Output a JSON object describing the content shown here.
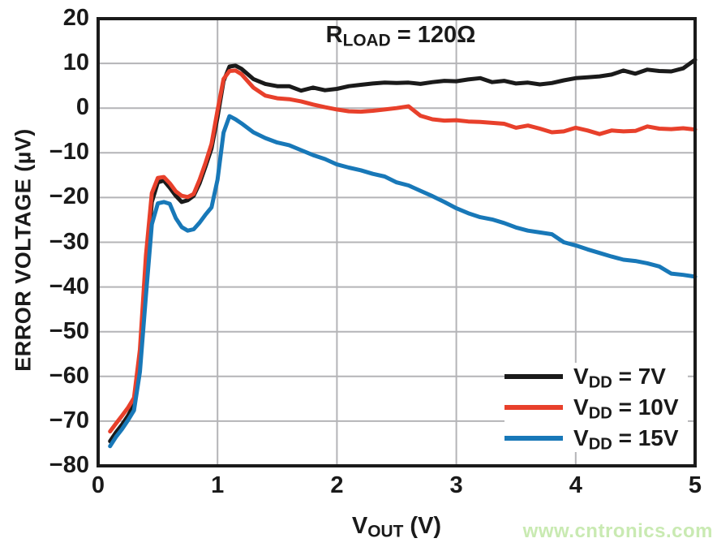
{
  "watermark": {
    "text": "www.cntronics.com",
    "color": "#c9eab2"
  },
  "chart_data": {
    "type": "line",
    "annotation": {
      "pre": "R",
      "sub": "LOAD",
      "post": " = 120Ω"
    },
    "xlabel": {
      "pre": "V",
      "sub": "OUT",
      "post": " (V)"
    },
    "ylabel": "ERROR VOLTAGE (µV)",
    "xlim": [
      0,
      5
    ],
    "ylim": [
      -80,
      20
    ],
    "x_ticks": [
      0,
      1,
      2,
      3,
      4,
      5
    ],
    "y_ticks": [
      20,
      10,
      0,
      -10,
      -20,
      -30,
      -40,
      -50,
      -60,
      -70,
      -80
    ],
    "grid": true,
    "grid_color": "#b4b4b7",
    "axis_color": "#1a1a1a",
    "legend_position": "lower right",
    "series": [
      {
        "id": "vdd-7v",
        "label_pre": "V",
        "label_sub": "DD",
        "label_post": " = 7V",
        "color": "#1a1a1a",
        "x": [
          0.1,
          0.15,
          0.2,
          0.25,
          0.3,
          0.35,
          0.4,
          0.45,
          0.5,
          0.55,
          0.6,
          0.65,
          0.7,
          0.75,
          0.8,
          0.85,
          0.9,
          0.95,
          1.0,
          1.05,
          1.1,
          1.15,
          1.2,
          1.3,
          1.4,
          1.5,
          1.6,
          1.7,
          1.8,
          1.9,
          2.0,
          2.1,
          2.2,
          2.3,
          2.4,
          2.5,
          2.6,
          2.7,
          2.8,
          2.9,
          3.0,
          3.1,
          3.2,
          3.3,
          3.4,
          3.5,
          3.6,
          3.7,
          3.8,
          3.9,
          4.0,
          4.1,
          4.2,
          4.3,
          4.4,
          4.5,
          4.6,
          4.7,
          4.8,
          4.9,
          5.0
        ],
        "y": [
          -74.5,
          -72.5,
          -70.8,
          -68.8,
          -66.3,
          -57,
          -37,
          -21,
          -16.6,
          -16.2,
          -17.8,
          -19.6,
          -21.0,
          -20.6,
          -19.6,
          -16.8,
          -13.0,
          -9.0,
          -2.0,
          6.0,
          9.3,
          9.5,
          8.8,
          6.5,
          5.4,
          4.9,
          4.9,
          3.9,
          4.6,
          4.0,
          4.3,
          4.9,
          5.2,
          5.5,
          5.7,
          5.6,
          5.7,
          5.4,
          5.8,
          6.1,
          6.0,
          6.4,
          6.7,
          5.8,
          6.1,
          5.5,
          5.7,
          5.3,
          5.6,
          6.2,
          6.7,
          6.9,
          7.1,
          7.5,
          8.4,
          7.7,
          8.6,
          8.3,
          8.2,
          8.9,
          10.8
        ]
      },
      {
        "id": "vdd-10v",
        "label_pre": "V",
        "label_sub": "DD",
        "label_post": " = 10V",
        "color": "#e8402b",
        "x": [
          0.1,
          0.15,
          0.2,
          0.25,
          0.3,
          0.35,
          0.4,
          0.45,
          0.5,
          0.55,
          0.6,
          0.65,
          0.7,
          0.75,
          0.8,
          0.85,
          0.9,
          0.95,
          1.0,
          1.05,
          1.1,
          1.15,
          1.2,
          1.3,
          1.4,
          1.5,
          1.6,
          1.7,
          1.8,
          1.9,
          2.0,
          2.1,
          2.2,
          2.3,
          2.4,
          2.5,
          2.6,
          2.7,
          2.8,
          2.9,
          3.0,
          3.1,
          3.2,
          3.3,
          3.4,
          3.5,
          3.6,
          3.7,
          3.8,
          3.9,
          4.0,
          4.1,
          4.2,
          4.3,
          4.4,
          4.5,
          4.6,
          4.7,
          4.8,
          4.9,
          5.0
        ],
        "y": [
          -72.3,
          -70.5,
          -68.8,
          -67.0,
          -64.8,
          -54,
          -33,
          -19,
          -15.6,
          -15.4,
          -16.8,
          -18.6,
          -19.6,
          -19.9,
          -19.2,
          -16.0,
          -12.2,
          -8.0,
          -0.5,
          6.5,
          8.3,
          8.4,
          7.6,
          4.6,
          2.8,
          2.2,
          2.0,
          1.5,
          0.8,
          0.2,
          -0.3,
          -0.7,
          -0.8,
          -0.6,
          -0.3,
          0.0,
          0.4,
          -1.7,
          -2.5,
          -2.8,
          -2.7,
          -3.0,
          -3.1,
          -3.3,
          -3.5,
          -4.4,
          -3.9,
          -4.6,
          -5.4,
          -5.2,
          -4.4,
          -5.0,
          -5.8,
          -5.0,
          -5.2,
          -5.1,
          -4.1,
          -4.6,
          -4.7,
          -4.5,
          -4.8
        ]
      },
      {
        "id": "vdd-15v",
        "label_pre": "V",
        "label_sub": "DD",
        "label_post": " = 15V",
        "color": "#1878b8",
        "x": [
          0.1,
          0.15,
          0.2,
          0.25,
          0.3,
          0.35,
          0.4,
          0.45,
          0.5,
          0.55,
          0.6,
          0.65,
          0.7,
          0.75,
          0.8,
          0.85,
          0.9,
          0.95,
          1.0,
          1.05,
          1.1,
          1.15,
          1.2,
          1.3,
          1.4,
          1.5,
          1.6,
          1.7,
          1.8,
          1.9,
          2.0,
          2.1,
          2.2,
          2.3,
          2.4,
          2.5,
          2.6,
          2.7,
          2.8,
          2.9,
          3.0,
          3.1,
          3.2,
          3.3,
          3.4,
          3.5,
          3.6,
          3.7,
          3.8,
          3.9,
          4.0,
          4.1,
          4.2,
          4.3,
          4.4,
          4.5,
          4.6,
          4.7,
          4.8,
          4.9,
          5.0
        ],
        "y": [
          -75.6,
          -73.5,
          -71.8,
          -69.8,
          -67.6,
          -59,
          -42,
          -26,
          -21.3,
          -21.0,
          -21.4,
          -24.6,
          -26.6,
          -27.4,
          -27.1,
          -25.6,
          -23.8,
          -22.2,
          -16.0,
          -5.5,
          -1.8,
          -2.5,
          -3.4,
          -5.4,
          -6.7,
          -7.7,
          -8.3,
          -9.4,
          -10.5,
          -11.4,
          -12.6,
          -13.3,
          -13.9,
          -14.7,
          -15.3,
          -16.6,
          -17.3,
          -18.5,
          -19.7,
          -21.0,
          -22.4,
          -23.5,
          -24.4,
          -24.9,
          -25.7,
          -26.7,
          -27.4,
          -27.8,
          -28.2,
          -30.0,
          -30.7,
          -31.6,
          -32.4,
          -33.2,
          -33.9,
          -34.2,
          -34.7,
          -35.4,
          -37.0,
          -37.3,
          -37.7
        ]
      }
    ]
  }
}
